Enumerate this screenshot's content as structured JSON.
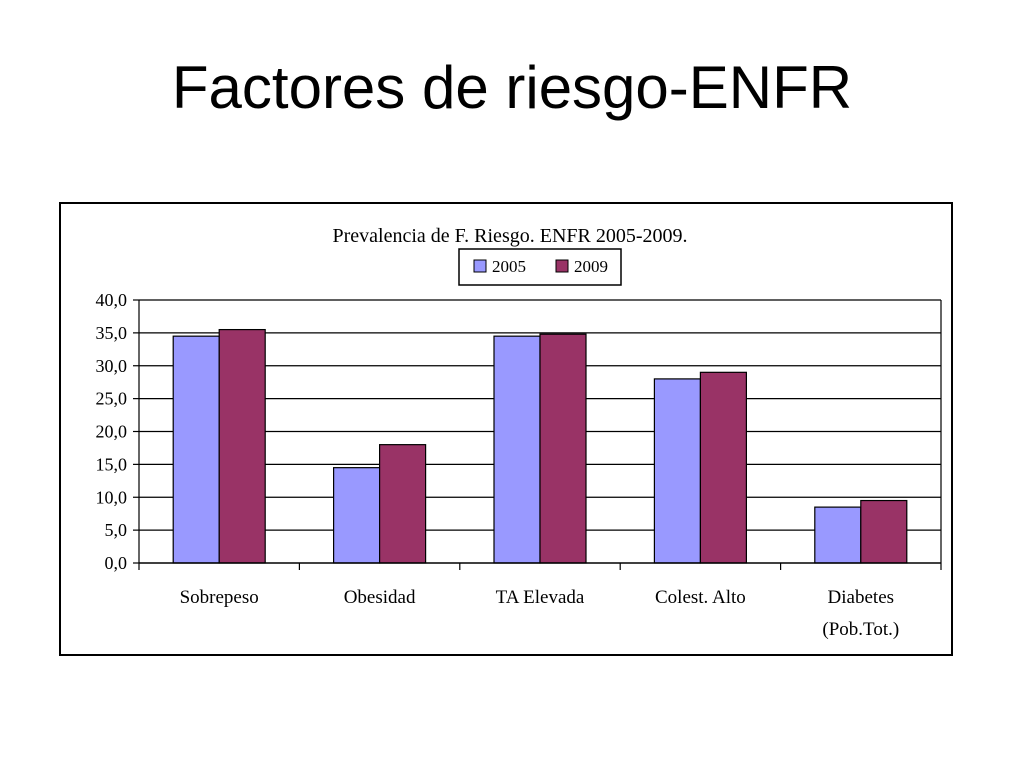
{
  "slide": {
    "title": "Factores de riesgo-ENFR"
  },
  "chart_data": {
    "type": "bar",
    "title": "Prevalencia de F. Riesgo. ENFR 2005-2009.",
    "xlabel": "",
    "ylabel": "",
    "categories": [
      [
        "Sobrepeso"
      ],
      [
        "Obesidad"
      ],
      [
        "TA Elevada"
      ],
      [
        "Colest.  Alto"
      ],
      [
        "Diabetes",
        "(Pob.Tot.)"
      ]
    ],
    "series": [
      {
        "name": "2005",
        "values": [
          34.5,
          14.5,
          34.5,
          28.0,
          8.5
        ],
        "color": "#9999ff"
      },
      {
        "name": "2009",
        "values": [
          35.5,
          18.0,
          34.8,
          29.0,
          9.5
        ],
        "color": "#993366"
      }
    ],
    "yticks": [
      "0,0",
      "5,0",
      "10,0",
      "15,0",
      "20,0",
      "25,0",
      "30,0",
      "35,0",
      "40,0"
    ],
    "ylim": [
      0,
      40
    ],
    "grid": true,
    "legend": "top-center"
  }
}
